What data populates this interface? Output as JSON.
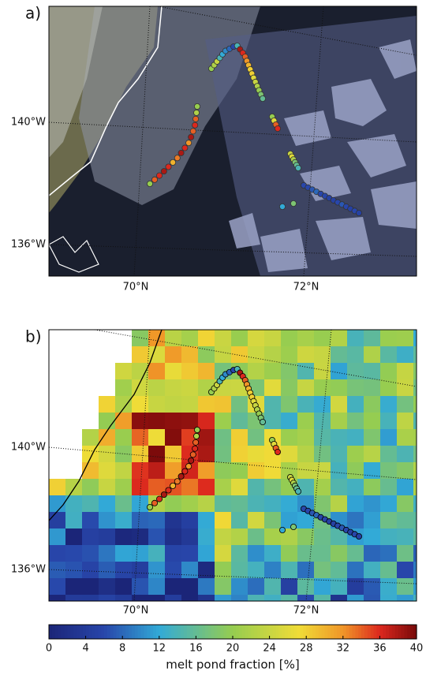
{
  "panels": [
    {
      "label": "a)"
    },
    {
      "label": "b)"
    }
  ],
  "lat_labels": [
    "140°W",
    "136°W"
  ],
  "lon_labels": [
    "70°N",
    "72°N"
  ],
  "tracks": [
    {
      "values": [
        20,
        34,
        36,
        38,
        36,
        30,
        33,
        38,
        36,
        32,
        38,
        34,
        36,
        34,
        22,
        20
      ]
    },
    {
      "values": [
        20,
        22,
        24,
        14,
        12,
        10,
        8,
        6,
        14,
        38,
        36,
        34,
        32,
        30,
        28,
        28,
        26,
        24,
        22,
        20,
        18,
        16
      ]
    },
    {
      "values": [
        20,
        26,
        34,
        36
      ]
    },
    {
      "values": [
        24,
        26,
        22,
        18,
        16,
        14
      ]
    },
    {
      "values": [
        6,
        6,
        7,
        8,
        6,
        6,
        5,
        5,
        6,
        7,
        6,
        5,
        6,
        5
      ]
    },
    {
      "values": [
        12,
        18
      ]
    }
  ],
  "colorbar": {
    "label": "melt pond fraction [%]",
    "range": [
      0,
      40
    ],
    "ticks": [
      0,
      4,
      8,
      12,
      16,
      20,
      24,
      28,
      32,
      36,
      40
    ]
  }
}
